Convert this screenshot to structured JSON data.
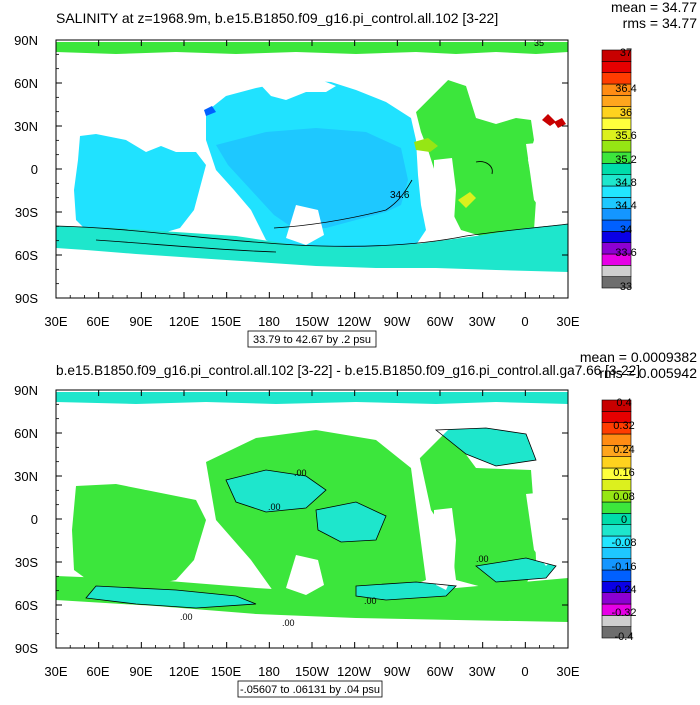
{
  "chart_data": [
    {
      "type": "contour-map",
      "title": "SALINITY at z=1968.9m, b.e15.B1850.f09_g16.pi_control.all.102 [3-22]",
      "stats": [
        "mean = 34.77",
        "rms = 34.77"
      ],
      "x_ticks": [
        "30E",
        "60E",
        "90E",
        "120E",
        "150E",
        "180",
        "150W",
        "120W",
        "90W",
        "60W",
        "30W",
        "0",
        "30E"
      ],
      "y_ticks": [
        "90N",
        "60N",
        "30N",
        "0",
        "30S",
        "60S",
        "90S"
      ],
      "lon_range": [
        30,
        390
      ],
      "lat_range": [
        -90,
        90
      ],
      "contour_info": "33.79 to 42.67 by .2 psu",
      "contour_labels": [
        "34.6",
        "35"
      ],
      "colorbar": {
        "levels": [
          33.0,
          33.2,
          33.4,
          33.6,
          33.8,
          34.0,
          34.2,
          34.4,
          34.6,
          34.8,
          35.0,
          35.2,
          35.4,
          35.6,
          35.8,
          36.0,
          36.2,
          36.4,
          36.6,
          36.8,
          37.0
        ],
        "labels": [
          "37",
          "36.4",
          "36",
          "35.6",
          "35.2",
          "34.8",
          "34.4",
          "34",
          "33.6",
          "33"
        ],
        "colors": [
          "#6e6e6e",
          "#cfcfcf",
          "#e600e6",
          "#8c00d2",
          "#0a00e6",
          "#0060ff",
          "#1496ff",
          "#1ec8ff",
          "#22e6ff",
          "#1ee6cc",
          "#00dcaa",
          "#3ce63c",
          "#96e614",
          "#dcf01e",
          "#ffff3c",
          "#ffd21e",
          "#ffa51e",
          "#ff8c14",
          "#ff3c00",
          "#e60000",
          "#c80000"
        ]
      }
    },
    {
      "type": "contour-map",
      "title": "b.e15.B1850.f09_g16.pi_control.all.102 [3-22] - b.e15.B1850.f09_g16.pi_control.all.ga7.66 [3-22]",
      "stats": [
        "mean = 0.0009382",
        "rms = 0.005942"
      ],
      "x_ticks": [
        "30E",
        "60E",
        "90E",
        "120E",
        "150E",
        "180",
        "150W",
        "120W",
        "90W",
        "60W",
        "30W",
        "0",
        "30E"
      ],
      "y_ticks": [
        "90N",
        "60N",
        "30N",
        "0",
        "30S",
        "60S",
        "90S"
      ],
      "lon_range": [
        30,
        390
      ],
      "lat_range": [
        -90,
        90
      ],
      "contour_info": "-.05607 to .06131 by .04 psu",
      "contour_labels": [
        ".00",
        ".00",
        ".00",
        ".00",
        ".00",
        ".00"
      ],
      "colorbar": {
        "levels": [
          -0.4,
          -0.36,
          -0.32,
          -0.28,
          -0.24,
          -0.2,
          -0.16,
          -0.12,
          -0.08,
          -0.04,
          0.0,
          0.04,
          0.08,
          0.12,
          0.16,
          0.2,
          0.24,
          0.28,
          0.32,
          0.36,
          0.4
        ],
        "labels": [
          "0.4",
          "0.32",
          "0.24",
          "0.16",
          "0.08",
          "0",
          "-0.08",
          "-0.16",
          "-0.24",
          "-0.32",
          "-0.4"
        ],
        "colors": [
          "#6e6e6e",
          "#cfcfcf",
          "#e600e6",
          "#8c00d2",
          "#0a00e6",
          "#0060ff",
          "#1496ff",
          "#1ec8ff",
          "#22e6ff",
          "#1ee6cc",
          "#00dcaa",
          "#3ce63c",
          "#96e614",
          "#dcf01e",
          "#ffff3c",
          "#ffd21e",
          "#ffa51e",
          "#ff8c14",
          "#ff3c00",
          "#e60000",
          "#c80000"
        ]
      }
    }
  ]
}
